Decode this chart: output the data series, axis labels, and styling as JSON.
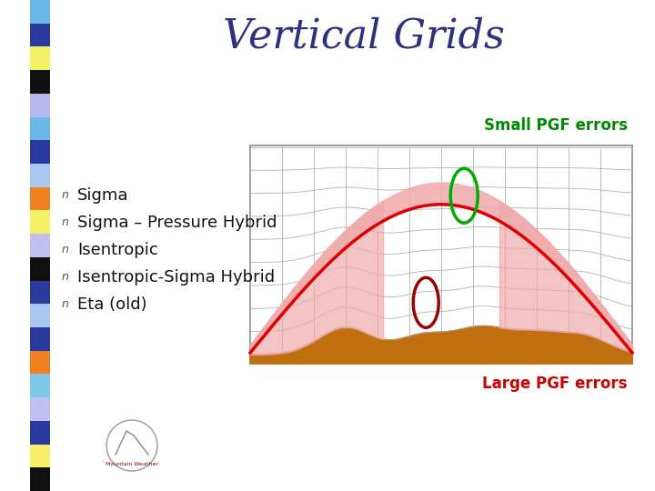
{
  "title": "Vertical Grids",
  "title_color": "#2E3080",
  "title_fontsize": 32,
  "background_color": "#ffffff",
  "sidebar_colors": [
    "#6BB8E8",
    "#2A3A9E",
    "#F5F066",
    "#111111",
    "#B8B8F0",
    "#6BB8E8",
    "#2A3A9E",
    "#A8C8F0",
    "#F08020",
    "#F5F066",
    "#C0C0F0",
    "#111111",
    "#2A3A9E",
    "#A8C8F0",
    "#2A3A9E",
    "#F08020",
    "#7EC8E8",
    "#C0C0F0",
    "#2A3A9E",
    "#F5F066",
    "#111111"
  ],
  "bullet_items": [
    "Sigma",
    "Sigma – Pressure Hybrid",
    "Isentropic",
    "Isentropic-Sigma Hybrid",
    "Eta (old)"
  ],
  "small_pgf_label": "Small PGF errors",
  "large_pgf_label": "Large PGF errors",
  "small_pgf_color": "#008800",
  "large_pgf_color": "#CC0000",
  "grid_color": "#AAAAAA",
  "terrain_color": "#C07010",
  "arch_color": "#DD0000",
  "pink_fill_color": "#F0AAAA",
  "green_ellipse_color": "#00AA00",
  "dark_red_ellipse_color": "#990000"
}
